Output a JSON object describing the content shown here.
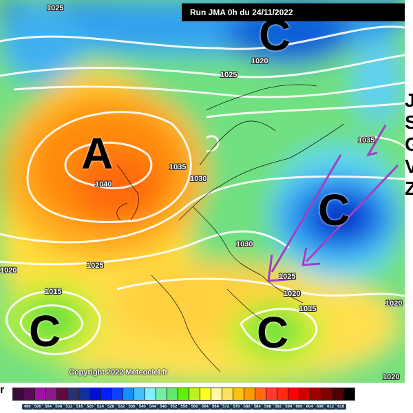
{
  "banner": {
    "title": "Run JMA 0h du 24/11/2022"
  },
  "copyright": "Copyright 2022 Meteociel.fr",
  "pressure_centers": [
    {
      "label": "A",
      "type": "high",
      "value": "1040"
    },
    {
      "label": "C",
      "type": "low"
    },
    {
      "label": "C",
      "type": "low"
    },
    {
      "label": "C",
      "type": "low"
    },
    {
      "label": "C",
      "type": "low",
      "value": "1020"
    }
  ],
  "isobar_labels": [
    "1025",
    "1025",
    "1020",
    "1035",
    "1030",
    "1040",
    "1030",
    "1025",
    "1025",
    "1020",
    "1015",
    "1020",
    "1015",
    "1020",
    "1035",
    "1020"
  ],
  "legend": {
    "unit_letter": "r",
    "ticks": [
      "496",
      "500",
      "504",
      "508",
      "512",
      "516",
      "520",
      "524",
      "528",
      "532",
      "536",
      "540",
      "544",
      "548",
      "552",
      "556",
      "560",
      "564",
      "568",
      "572",
      "576",
      "580",
      "584",
      "588",
      "592",
      "596",
      "600",
      "604",
      "608",
      "612",
      "616"
    ],
    "colors": [
      "#3a0a3a",
      "#5a0a55",
      "#a010a8",
      "#8a1a8a",
      "#600a40",
      "#2a3070",
      "#10309a",
      "#0010d0",
      "#0020ff",
      "#1040ff",
      "#1090ff",
      "#40c0ff",
      "#80f0ff",
      "#70f0a0",
      "#60e870",
      "#60f010",
      "#c0f020",
      "#ffff20",
      "#fff8a0",
      "#ffe060",
      "#ffc010",
      "#ff9a00",
      "#ff6a10",
      "#ff3a30",
      "#ff2a10",
      "#ff0000",
      "#d00000",
      "#a00000",
      "#800000",
      "#500000",
      "#000000"
    ]
  },
  "side_letters": [
    "J",
    "S",
    "G",
    "V",
    "Z"
  ],
  "annotation_color": "#a040c0"
}
